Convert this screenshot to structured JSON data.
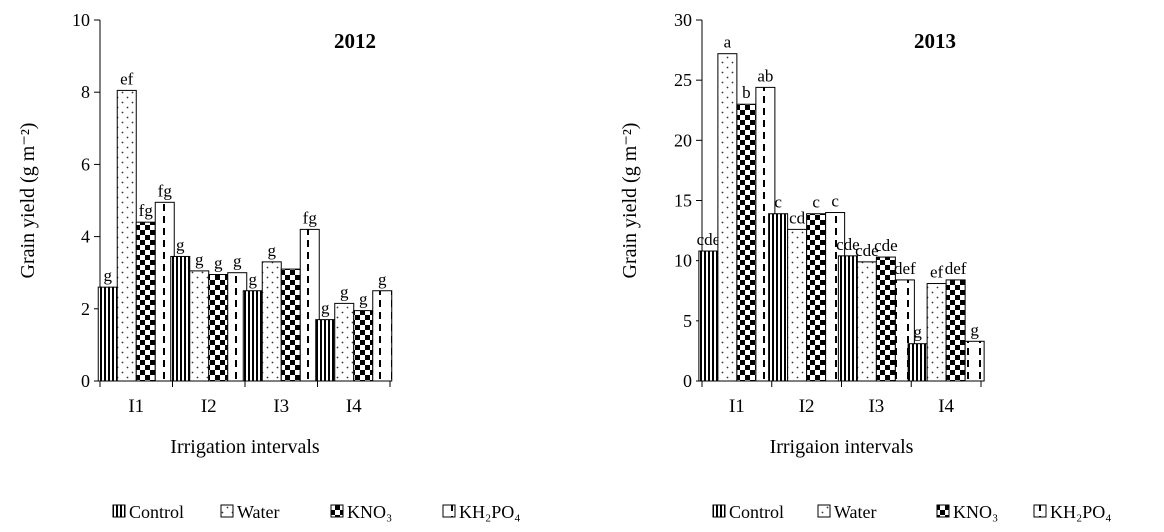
{
  "chart_data": [
    {
      "type": "bar",
      "title": "2012",
      "xlabel": "Irrigation intervals",
      "ylabel": "Grain yield (g m⁻²)",
      "ylim": [
        0,
        10
      ],
      "yticks": [
        0,
        2,
        4,
        6,
        8,
        10
      ],
      "categories": [
        "I1",
        "I2",
        "I3",
        "I4"
      ],
      "series": [
        {
          "name": "Control",
          "values": [
            2.6,
            3.45,
            2.5,
            1.7
          ],
          "letters": [
            "g",
            "g",
            "g",
            "g"
          ]
        },
        {
          "name": "Water",
          "values": [
            8.05,
            3.05,
            3.3,
            2.15
          ],
          "letters": [
            "ef",
            "g",
            "g",
            "g"
          ]
        },
        {
          "name": "KNO₃",
          "values": [
            4.4,
            2.95,
            3.1,
            1.95
          ],
          "letters": [
            "fg",
            "g",
            "",
            "g"
          ]
        },
        {
          "name": "KH₂PO₄",
          "values": [
            4.95,
            3.0,
            4.2,
            2.5
          ],
          "letters": [
            "fg",
            "g",
            "fg",
            "g"
          ]
        }
      ],
      "legend_position": "bottom"
    },
    {
      "type": "bar",
      "title": "2013",
      "xlabel": "Irrigaion intervals",
      "ylabel": "Grain yield (g m⁻²)",
      "ylim": [
        0,
        30
      ],
      "yticks": [
        0,
        5,
        10,
        15,
        20,
        25,
        30
      ],
      "categories": [
        "I1",
        "I2",
        "I3",
        "I4"
      ],
      "series": [
        {
          "name": "Control",
          "values": [
            10.8,
            13.9,
            10.4,
            3.1
          ],
          "letters": [
            "cde",
            "c",
            "cde",
            "g"
          ]
        },
        {
          "name": "Water",
          "values": [
            27.2,
            12.6,
            9.9,
            8.1
          ],
          "letters": [
            "a",
            "cd",
            "cde",
            "ef"
          ]
        },
        {
          "name": "KNO₃",
          "values": [
            23.0,
            13.9,
            10.3,
            8.4
          ],
          "letters": [
            "b",
            "c",
            "cde",
            "def"
          ]
        },
        {
          "name": "KH₂PO₄",
          "values": [
            24.4,
            14.0,
            8.4,
            3.3
          ],
          "letters": [
            "ab",
            "c",
            "def",
            "g"
          ]
        }
      ],
      "legend_position": "bottom"
    }
  ]
}
